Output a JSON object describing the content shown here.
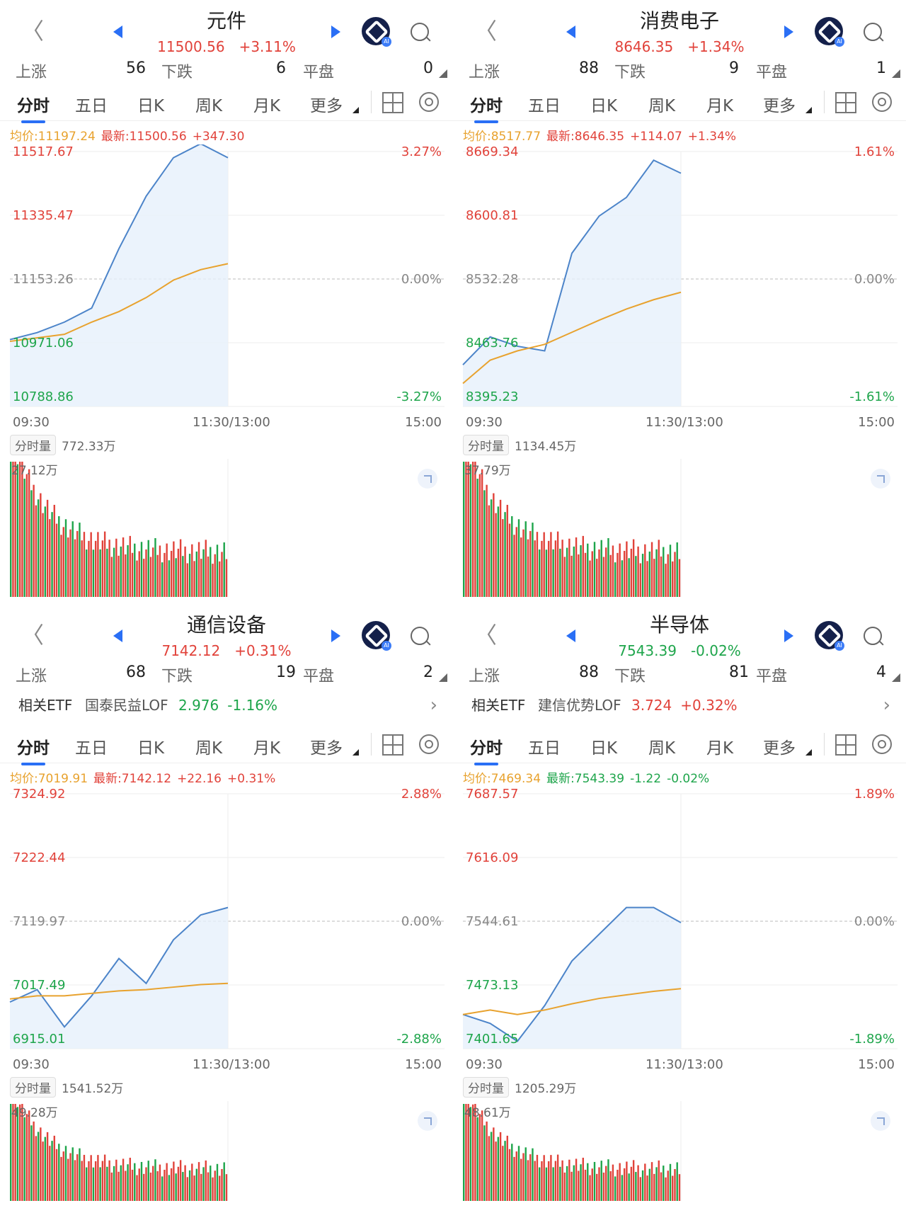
{
  "colors": {
    "up": "#e1423a",
    "down": "#1ea54b",
    "avg": "#e8a22e",
    "price": "#4c84c9",
    "accent": "#2a6ff5"
  },
  "panels": [
    {
      "title": "元件",
      "price": "11500.56",
      "change": "+3.11%",
      "dir": "up",
      "updown": {
        "up_label": "上涨",
        "up": "56",
        "down_label": "下跌",
        "down": "6",
        "flat_label": "平盘",
        "flat": "0"
      },
      "tabs": [
        "分时",
        "五日",
        "日K",
        "周K",
        "月K",
        "更多"
      ],
      "info": {
        "avg": "均价:11197.24",
        "latest": "最新:11500.56",
        "chg": "+347.30",
        "pct": ""
      },
      "y_left": [
        "11517.67",
        "11335.47",
        "11153.26",
        "10971.06",
        "10788.86"
      ],
      "y_right": [
        "3.27%",
        "",
        "0.00%",
        "",
        "-3.27%"
      ],
      "times": [
        "09:30",
        "11:30/13:00",
        "15:00"
      ],
      "vol": {
        "dropdown": "分时量",
        "total": "772.33万",
        "max": "27.12万"
      },
      "chart_data": {
        "type": "line",
        "ylim": [
          10788.86,
          11517.67
        ],
        "x": [
          "09:30",
          "09:45",
          "10:00",
          "10:15",
          "10:30",
          "10:45",
          "11:00",
          "11:15",
          "11:30"
        ],
        "series": [
          {
            "values": [
              10980,
              11000,
              11030,
              11070,
              11240,
              11390,
              11500,
              11540,
              11500
            ]
          },
          {
            "values": [
              10975,
              10985,
              10995,
              11030,
              11060,
              11100,
              11150,
              11180,
              11197
            ]
          }
        ]
      }
    },
    {
      "title": "消费电子",
      "price": "8646.35",
      "change": "+1.34%",
      "dir": "up",
      "updown": {
        "up_label": "上涨",
        "up": "88",
        "down_label": "下跌",
        "down": "9",
        "flat_label": "平盘",
        "flat": "1"
      },
      "tabs": [
        "分时",
        "五日",
        "日K",
        "周K",
        "月K",
        "更多"
      ],
      "info": {
        "avg": "均价:8517.77",
        "latest": "最新:8646.35",
        "chg": "+114.07",
        "pct": "+1.34%"
      },
      "y_left": [
        "8669.34",
        "8600.81",
        "8532.28",
        "8463.76",
        "8395.23"
      ],
      "y_right": [
        "1.61%",
        "",
        "0.00%",
        "",
        "-1.61%"
      ],
      "times": [
        "09:30",
        "11:30/13:00",
        "15:00"
      ],
      "vol": {
        "dropdown": "分时量",
        "total": "1134.45万",
        "max": "37.79万"
      },
      "chart_data": {
        "type": "line",
        "ylim": [
          8395.23,
          8669.34
        ],
        "x": [
          "09:30",
          "09:45",
          "10:00",
          "10:15",
          "10:30",
          "10:45",
          "11:00",
          "11:15",
          "11:30"
        ],
        "series": [
          {
            "values": [
              8440,
              8470,
              8460,
              8455,
              8560,
              8600,
              8620,
              8660,
              8646
            ]
          },
          {
            "values": [
              8420,
              8445,
              8455,
              8462,
              8475,
              8488,
              8500,
              8510,
              8518
            ]
          }
        ]
      }
    },
    {
      "title": "通信设备",
      "price": "7142.12",
      "change": "+0.31%",
      "dir": "up",
      "updown": {
        "up_label": "上涨",
        "up": "68",
        "down_label": "下跌",
        "down": "19",
        "flat_label": "平盘",
        "flat": "2"
      },
      "etf": {
        "label": "相关ETF",
        "name": "国泰民益LOF",
        "value": "2.976",
        "pct": "-1.16%",
        "dir": "down"
      },
      "tabs": [
        "分时",
        "五日",
        "日K",
        "周K",
        "月K",
        "更多"
      ],
      "info": {
        "avg": "均价:7019.91",
        "latest": "最新:7142.12",
        "chg": "+22.16",
        "pct": "+0.31%"
      },
      "y_left": [
        "7324.92",
        "7222.44",
        "7119.97",
        "7017.49",
        "6915.01"
      ],
      "y_right": [
        "2.88%",
        "",
        "0.00%",
        "",
        "-2.88%"
      ],
      "times": [
        "09:30",
        "11:30/13:00",
        "15:00"
      ],
      "vol": {
        "dropdown": "分时量",
        "total": "1541.52万",
        "max": "49.28万"
      },
      "chart_data": {
        "type": "line",
        "ylim": [
          6915.01,
          7324.92
        ],
        "x": [
          "09:30",
          "09:45",
          "10:00",
          "10:15",
          "10:30",
          "10:45",
          "11:00",
          "11:15",
          "11:30"
        ],
        "series": [
          {
            "values": [
              6990,
              7010,
              6950,
              7000,
              7060,
              7020,
              7090,
              7130,
              7142
            ]
          },
          {
            "values": [
              6995,
              7000,
              7000,
              7004,
              7008,
              7010,
              7014,
              7018,
              7020
            ]
          }
        ]
      }
    },
    {
      "title": "半导体",
      "price": "7543.39",
      "change": "-0.02%",
      "dir": "down",
      "updown": {
        "up_label": "上涨",
        "up": "88",
        "down_label": "下跌",
        "down": "81",
        "flat_label": "平盘",
        "flat": "4"
      },
      "etf": {
        "label": "相关ETF",
        "name": "建信优势LOF",
        "value": "3.724",
        "pct": "+0.32%",
        "dir": "up"
      },
      "tabs": [
        "分时",
        "五日",
        "日K",
        "周K",
        "月K",
        "更多"
      ],
      "info": {
        "avg": "均价:7469.34",
        "latest": "最新:7543.39",
        "chg": "-1.22",
        "pct": "-0.02%"
      },
      "y_left": [
        "7687.57",
        "7616.09",
        "7544.61",
        "7473.13",
        "7401.65"
      ],
      "y_right": [
        "1.89%",
        "",
        "0.00%",
        "",
        "-1.89%"
      ],
      "times": [
        "09:30",
        "11:30/13:00",
        "15:00"
      ],
      "vol": {
        "dropdown": "分时量",
        "total": "1205.29万",
        "max": "48.61万"
      },
      "chart_data": {
        "type": "line",
        "ylim": [
          7401.65,
          7687.57
        ],
        "x": [
          "09:30",
          "09:45",
          "10:00",
          "10:15",
          "10:30",
          "10:45",
          "11:00",
          "11:15",
          "11:30"
        ],
        "series": [
          {
            "values": [
              7440,
              7430,
              7410,
              7450,
              7500,
              7530,
              7560,
              7560,
              7543
            ]
          },
          {
            "values": [
              7440,
              7445,
              7440,
              7445,
              7452,
              7458,
              7462,
              7466,
              7469
            ]
          }
        ]
      }
    }
  ]
}
